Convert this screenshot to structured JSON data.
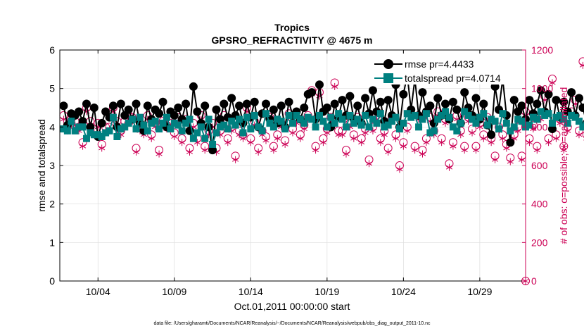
{
  "chart_data": {
    "type": "line",
    "title": "Tropics",
    "subtitle": "GPSRO_REFRACTIVITY @ 4675 m",
    "xlabel": "Oct.01,2011 00:00:00 start",
    "ylabel_left": "rmse and totalspread",
    "ylabel_right": "# of obs: o=possible; ∗=assimilated",
    "footer": "data file: /Users/gharamti/Documents/NCAR/Reanalysis/~/Documents/NCAR/Reanalysis/webpub/obs_diag_output_2011-10.nc",
    "xlim_days": [
      1.5,
      32.0
    ],
    "ylim_left": [
      0,
      6
    ],
    "ylim_right": [
      0,
      1200
    ],
    "x_ticks": [
      {
        "label": "10/04",
        "day": 4
      },
      {
        "label": "10/09",
        "day": 9
      },
      {
        "label": "10/14",
        "day": 14
      },
      {
        "label": "10/19",
        "day": 19
      },
      {
        "label": "10/24",
        "day": 24
      },
      {
        "label": "10/29",
        "day": 29
      }
    ],
    "y_ticks_left": [
      "0",
      "1",
      "2",
      "3",
      "4",
      "5",
      "6"
    ],
    "y_ticks_right": [
      "0",
      "200",
      "400",
      "600",
      "800",
      "1000",
      "1200"
    ],
    "grid": true,
    "legend_position": "top-right",
    "colors": {
      "rmse": "#000000",
      "spread": "#008080",
      "obs": "#cc0055",
      "grid": "#dddddd"
    },
    "step_days": 0.25,
    "start_day": 1.75,
    "series": [
      {
        "name": "rmse",
        "legend": "rmse pr=4.4433",
        "axis": "left",
        "marker": "circle",
        "values": [
          4.55,
          4.05,
          4.35,
          4.3,
          4.4,
          4.15,
          4.6,
          4.0,
          4.5,
          3.75,
          4.1,
          4.4,
          4.25,
          4.55,
          4.0,
          4.6,
          4.3,
          4.45,
          4.2,
          4.6,
          4.1,
          3.9,
          4.55,
          4.2,
          4.45,
          4.35,
          4.65,
          4.0,
          4.4,
          4.3,
          4.5,
          4.2,
          4.6,
          3.9,
          5.05,
          4.4,
          4.1,
          4.55,
          4.0,
          3.4,
          4.45,
          4.2,
          4.6,
          4.25,
          4.75,
          4.3,
          4.55,
          4.1,
          4.6,
          4.25,
          4.65,
          4.0,
          4.35,
          4.6,
          4.2,
          4.45,
          4.1,
          4.55,
          4.0,
          4.65,
          4.3,
          4.4,
          4.2,
          4.5,
          4.85,
          4.9,
          4.2,
          5.1,
          4.4,
          4.5,
          4.0,
          4.6,
          4.25,
          4.7,
          4.3,
          4.8,
          4.2,
          4.55,
          4.1,
          4.75,
          4.35,
          4.95,
          4.4,
          4.65,
          4.15,
          4.7,
          4.3,
          5.1,
          4.0,
          4.85,
          5.35,
          4.45,
          5.25,
          4.3,
          4.9,
          4.4,
          4.55,
          4.1,
          4.75,
          4.3,
          4.6,
          4.2,
          4.65,
          4.45,
          4.1,
          4.9,
          4.5,
          4.3,
          4.75,
          4.2,
          4.6,
          4.05,
          3.8,
          5.05,
          4.45,
          5.25,
          4.3,
          3.6,
          4.7,
          4.4,
          4.55,
          4.2,
          4.7,
          4.35,
          4.6,
          4.95,
          4.4,
          4.85,
          3.95,
          4.7,
          4.25,
          4.65,
          4.4,
          4.9,
          4.3,
          4.75,
          4.5,
          4.1,
          4.65,
          4.8,
          4.2,
          4.6
        ]
      },
      {
        "name": "totalspread",
        "legend": "totalspread pr=4.0714",
        "axis": "left",
        "marker": "square",
        "values": [
          3.95,
          3.9,
          4.15,
          3.9,
          4.0,
          4.0,
          3.7,
          3.85,
          3.8,
          3.8,
          3.75,
          3.85,
          3.9,
          4.25,
          3.75,
          3.95,
          4.0,
          4.1,
          4.2,
          3.95,
          4.25,
          4.05,
          3.9,
          4.1,
          4.15,
          3.95,
          4.1,
          4.25,
          3.95,
          4.1,
          4.05,
          3.9,
          4.1,
          4.2,
          3.7,
          3.85,
          4.0,
          3.7,
          4.2,
          3.55,
          3.85,
          4.0,
          4.05,
          3.95,
          4.15,
          4.05,
          4.2,
          3.85,
          4.25,
          3.95,
          4.3,
          4.0,
          3.9,
          4.35,
          4.1,
          4.0,
          4.2,
          4.15,
          3.95,
          4.3,
          4.1,
          4.3,
          4.2,
          4.1,
          4.25,
          4.2,
          4.0,
          4.3,
          4.15,
          4.0,
          4.25,
          4.1,
          4.35,
          4.2,
          4.0,
          4.3,
          4.1,
          4.2,
          4.05,
          4.3,
          4.0,
          4.2,
          4.1,
          4.35,
          4.0,
          4.05,
          4.15,
          4.25,
          3.95,
          4.1,
          4.35,
          4.25,
          4.3,
          4.0,
          4.2,
          4.35,
          3.85,
          3.9,
          4.2,
          4.3,
          4.4,
          4.25,
          4.0,
          3.9,
          4.1,
          4.4,
          4.3,
          4.2,
          4.1,
          4.25,
          4.35,
          4.05,
          4.2,
          4.15,
          3.95,
          4.35,
          4.1,
          3.9,
          4.0,
          4.2,
          4.15,
          4.0,
          4.05,
          4.25,
          4.2,
          4.4,
          4.3,
          4.35,
          4.1,
          4.25,
          4.3,
          4.2,
          4.1,
          4.3,
          4.25,
          4.15,
          4.0,
          4.05,
          4.2,
          4.6,
          4.0,
          4.1
        ]
      },
      {
        "name": "obs_possible",
        "axis": "right",
        "marker": "open-circle",
        "values": [
          860,
          800,
          840,
          830,
          800,
          720,
          900,
          830,
          790,
          820,
          710,
          800,
          800,
          900,
          830,
          780,
          830,
          860,
          850,
          690,
          800,
          780,
          860,
          760,
          820,
          680,
          830,
          810,
          820,
          770,
          850,
          740,
          840,
          690,
          820,
          740,
          860,
          700,
          780,
          820,
          690,
          780,
          860,
          740,
          800,
          650,
          780,
          760,
          900,
          740,
          830,
          690,
          780,
          750,
          850,
          700,
          760,
          820,
          730,
          870,
          790,
          840,
          760,
          810,
          860,
          990,
          700,
          980,
          740,
          790,
          850,
          1030,
          780,
          780,
          680,
          820,
          760,
          850,
          740,
          790,
          630,
          800,
          860,
          740,
          780,
          690,
          850,
          760,
          600,
          720,
          800,
          1070,
          700,
          860,
          680,
          740,
          850,
          780,
          880,
          740,
          840,
          610,
          720,
          860,
          780,
          700,
          850,
          790,
          700,
          820,
          760,
          850,
          740,
          650,
          800,
          760,
          710,
          640,
          760,
          800,
          650,
          880,
          740,
          810,
          700,
          860,
          960,
          740,
          1050,
          760,
          840,
          700,
          800,
          880,
          940,
          780,
          1140,
          760,
          830,
          800,
          790,
          820
        ]
      },
      {
        "name": "obs_assimilated",
        "axis": "right",
        "marker": "asterisk",
        "values": [
          840,
          780,
          820,
          810,
          780,
          700,
          880,
          810,
          770,
          800,
          690,
          780,
          780,
          880,
          810,
          760,
          810,
          840,
          830,
          670,
          780,
          760,
          840,
          740,
          800,
          660,
          810,
          790,
          800,
          750,
          830,
          720,
          820,
          670,
          800,
          720,
          840,
          680,
          760,
          800,
          670,
          760,
          840,
          720,
          780,
          630,
          760,
          740,
          880,
          720,
          810,
          670,
          760,
          730,
          830,
          680,
          740,
          800,
          710,
          850,
          770,
          820,
          740,
          790,
          840,
          970,
          680,
          960,
          720,
          770,
          830,
          1010,
          760,
          760,
          660,
          800,
          740,
          830,
          720,
          770,
          610,
          780,
          840,
          720,
          760,
          670,
          830,
          740,
          580,
          700,
          780,
          1050,
          680,
          840,
          660,
          720,
          830,
          760,
          860,
          720,
          820,
          590,
          700,
          840,
          760,
          680,
          830,
          770,
          680,
          800,
          740,
          830,
          720,
          630,
          780,
          740,
          690,
          620,
          740,
          780,
          630,
          860,
          720,
          790,
          680,
          840,
          940,
          720,
          1030,
          740,
          820,
          680,
          780,
          860,
          920,
          760,
          1120,
          740,
          810,
          780,
          770,
          800
        ]
      }
    ]
  }
}
